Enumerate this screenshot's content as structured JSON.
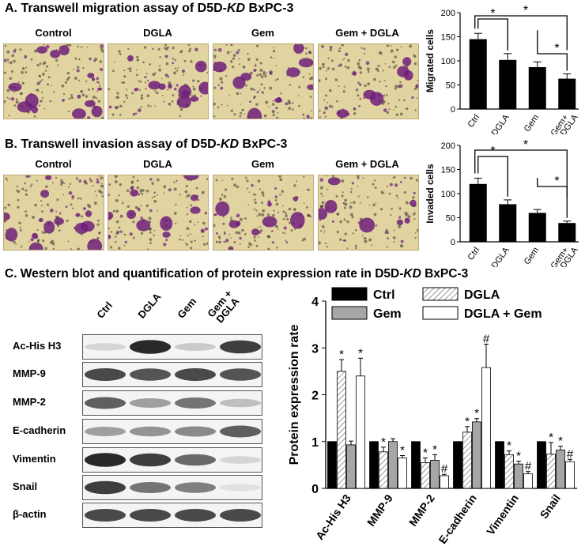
{
  "sections": {
    "a_prefix": "A. Transwell migration assay of D5D-",
    "a_kd": "KD",
    "a_suffix": " BxPC-3",
    "b_prefix": "B. Transwell invasion assay of D5D-",
    "b_kd": "KD",
    "b_suffix": " BxPC-3",
    "c_prefix": "C. Western blot and quantification of protein expression rate in D5D-",
    "c_kd": "KD",
    "c_suffix": " BxPC-3"
  },
  "image_labels": [
    "Control",
    "DGLA",
    "Gem",
    "Gem + DGLA"
  ],
  "blot": {
    "lanes": [
      "Ctrl",
      "DGLA",
      "Gem",
      "Gem +\nDGLA"
    ],
    "rows": [
      "Ac-His H3",
      "MMP-9",
      "MMP-2",
      "E-cadherin",
      "Vimentin",
      "Snail",
      "β-actin"
    ],
    "intensity": [
      [
        0.15,
        0.95,
        0.2,
        0.85
      ],
      [
        0.8,
        0.75,
        0.8,
        0.75
      ],
      [
        0.7,
        0.4,
        0.6,
        0.25
      ],
      [
        0.4,
        0.45,
        0.5,
        0.7
      ],
      [
        0.95,
        0.85,
        0.65,
        0.15
      ],
      [
        0.85,
        0.6,
        0.55,
        0.1
      ],
      [
        0.8,
        0.8,
        0.8,
        0.8
      ]
    ]
  },
  "colors": {
    "purple": "#6e1f7a",
    "tan": "#e2d4a0",
    "ctrl_bar": "#000000",
    "gem_bar": "#a6a6a6"
  },
  "chart_data": [
    {
      "type": "bar",
      "categories": [
        "Ctrl",
        "DGLA",
        "Gem",
        "Gem+ DGLA"
      ],
      "values": [
        145,
        102,
        87,
        63
      ],
      "errors": [
        12,
        13,
        11,
        10
      ],
      "ylabel": "Migrated cells",
      "ylim": [
        0,
        200
      ],
      "yticks": [
        0,
        50,
        100,
        150,
        200
      ],
      "significance": [
        "*",
        "*",
        "*"
      ]
    },
    {
      "type": "bar",
      "categories": [
        "Ctrl",
        "DGLA",
        "Gem",
        "Gem+ DGLA"
      ],
      "values": [
        120,
        78,
        60,
        39
      ],
      "errors": [
        12,
        9,
        7,
        4
      ],
      "ylabel": "Invaded cells",
      "ylim": [
        0,
        200
      ],
      "yticks": [
        0,
        50,
        100,
        150,
        200
      ],
      "significance": [
        "*",
        "*",
        "*"
      ]
    },
    {
      "type": "bar",
      "categories": [
        "Ac-His H3",
        "MMP-9",
        "MMP-2",
        "E-cadherin",
        "Vimentin",
        "Snail"
      ],
      "series": [
        {
          "name": "Ctrl",
          "values": [
            1,
            1,
            1,
            1,
            1,
            1
          ],
          "errors": [
            0,
            0,
            0,
            0,
            0,
            0
          ],
          "marks": [
            "",
            "",
            "",
            "",
            "",
            ""
          ]
        },
        {
          "name": "DGLA",
          "values": [
            2.5,
            0.78,
            0.55,
            1.2,
            0.72,
            0.73
          ],
          "errors": [
            0.25,
            0.1,
            0.1,
            0.12,
            0.08,
            0.25
          ],
          "marks": [
            "*",
            "*",
            "*",
            "*",
            "*",
            "*"
          ]
        },
        {
          "name": "Gem",
          "values": [
            0.93,
            1.0,
            0.6,
            1.42,
            0.52,
            0.82
          ],
          "errors": [
            0.08,
            0.06,
            0.12,
            0.07,
            0.06,
            0.08
          ],
          "marks": [
            "",
            "",
            "*",
            "*",
            "*",
            "*"
          ]
        },
        {
          "name": "DGLA + Gem",
          "values": [
            2.4,
            0.65,
            0.27,
            2.58,
            0.31,
            0.57
          ],
          "errors": [
            0.38,
            0.05,
            0.03,
            0.5,
            0.05,
            0.05
          ],
          "marks": [
            "*",
            "*",
            "#",
            "#",
            "#",
            "#"
          ]
        }
      ],
      "ylabel": "Protein expression rate",
      "ylim": [
        0,
        4
      ],
      "yticks": [
        0,
        1,
        2,
        3,
        4
      ],
      "legend_position": "top"
    }
  ]
}
